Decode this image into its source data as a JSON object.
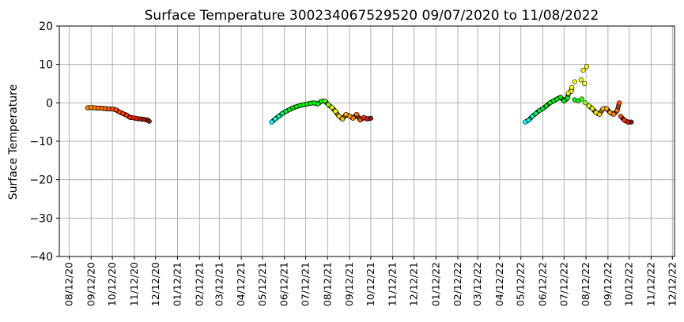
{
  "chart_data": {
    "type": "scatter",
    "title": "Surface Temperature 300234067529520  09/07/2020 to 11/08/2022",
    "xlabel": "",
    "ylabel": "Surface Temperature",
    "ylim": [
      -40,
      20
    ],
    "yticks": [
      20,
      10,
      0,
      -10,
      -20,
      -30,
      -40
    ],
    "yticklabels": [
      "20",
      "10",
      "0",
      "−10",
      "−20",
      "−30",
      "−40"
    ],
    "xlim": [
      "2020-07-29",
      "2022-12-15"
    ],
    "xticks": [
      "2020-08-12",
      "2020-09-12",
      "2020-10-12",
      "2020-11-12",
      "2020-12-12",
      "2021-01-12",
      "2021-02-12",
      "2021-03-12",
      "2021-04-12",
      "2021-05-12",
      "2021-06-12",
      "2021-07-12",
      "2021-08-12",
      "2021-09-12",
      "2021-10-12",
      "2021-11-12",
      "2021-12-12",
      "2022-01-12",
      "2022-02-12",
      "2022-03-12",
      "2022-04-12",
      "2022-05-12",
      "2022-06-12",
      "2022-07-12",
      "2022-08-12",
      "2022-09-12",
      "2022-10-12",
      "2022-11-12",
      "2022-12-12"
    ],
    "xticklabels": [
      "08/12/20",
      "09/12/20",
      "10/12/20",
      "11/12/20",
      "12/12/20",
      "01/12/21",
      "02/12/21",
      "03/12/21",
      "04/12/21",
      "05/12/21",
      "06/12/21",
      "07/12/21",
      "08/12/21",
      "09/12/21",
      "10/12/21",
      "11/12/21",
      "12/12/21",
      "01/12/22",
      "02/12/22",
      "03/12/22",
      "04/12/22",
      "05/12/22",
      "06/12/22",
      "07/12/22",
      "08/12/22",
      "09/12/22",
      "10/12/22",
      "11/12/22",
      "12/12/22"
    ],
    "grid": true,
    "colormap": "value-coloured markers (cyan → green → yellow → orange → red → dark red)",
    "series": [
      {
        "x": [
          "2020-09-07",
          "2020-09-12",
          "2020-09-17",
          "2020-09-22",
          "2020-09-27",
          "2020-10-02",
          "2020-10-07",
          "2020-10-12",
          "2020-10-17",
          "2020-10-22",
          "2020-10-27",
          "2020-11-01",
          "2020-11-06",
          "2020-11-11",
          "2020-11-16",
          "2020-11-21",
          "2020-11-26",
          "2020-12-01",
          "2020-12-03"
        ],
        "y": [
          -1.3,
          -1.2,
          -1.3,
          -1.4,
          -1.4,
          -1.5,
          -1.6,
          -1.6,
          -1.8,
          -2.4,
          -2.8,
          -3.2,
          -3.8,
          -3.9,
          -4.1,
          -4.2,
          -4.3,
          -4.5,
          -4.8
        ]
      },
      {
        "x": [
          "2021-05-25",
          "2021-05-30",
          "2021-06-04",
          "2021-06-09",
          "2021-06-14",
          "2021-06-19",
          "2021-06-24",
          "2021-06-29",
          "2021-07-04",
          "2021-07-09",
          "2021-07-14",
          "2021-07-19",
          "2021-07-24",
          "2021-07-29",
          "2021-08-03",
          "2021-08-08",
          "2021-08-13",
          "2021-08-18",
          "2021-08-23",
          "2021-08-28",
          "2021-09-02",
          "2021-09-07",
          "2021-09-12",
          "2021-09-17",
          "2021-09-22",
          "2021-09-27",
          "2021-10-02",
          "2021-10-07",
          "2021-10-12"
        ],
        "y": [
          -5.0,
          -4.2,
          -3.5,
          -2.8,
          -2.2,
          -1.8,
          -1.3,
          -1.0,
          -0.7,
          -0.5,
          -0.3,
          -0.1,
          0.0,
          -0.3,
          0.4,
          0.5,
          -0.5,
          -1.2,
          -2.2,
          -3.5,
          -4.2,
          -3.0,
          -3.5,
          -4.0,
          -3.0,
          -4.5,
          -3.8,
          -4.2,
          -4.0
        ]
      },
      {
        "x": [
          "2022-05-18",
          "2022-05-23",
          "2022-05-28",
          "2022-06-02",
          "2022-06-07",
          "2022-06-12",
          "2022-06-17",
          "2022-06-22",
          "2022-06-27",
          "2022-07-02",
          "2022-07-07",
          "2022-07-12",
          "2022-07-17",
          "2022-07-22",
          "2022-07-27",
          "2022-08-01",
          "2022-08-06",
          "2022-08-11",
          "2022-08-16",
          "2022-08-21",
          "2022-08-26",
          "2022-08-31",
          "2022-09-05",
          "2022-09-10",
          "2022-09-15",
          "2022-09-20",
          "2022-09-25",
          "2022-09-30",
          "2022-10-05",
          "2022-10-10",
          "2022-10-15",
          "2022-07-23",
          "2022-07-27",
          "2022-08-08",
          "2022-08-10",
          "2022-08-13",
          "2022-07-18",
          "2022-08-05",
          "2022-09-28"
        ],
        "y": [
          -5.0,
          -4.5,
          -3.5,
          -2.8,
          -2.0,
          -1.5,
          -0.8,
          0.0,
          0.5,
          1.0,
          1.5,
          0.5,
          1.2,
          3.0,
          0.8,
          0.5,
          1.0,
          0.0,
          -0.8,
          -1.5,
          -2.5,
          -3.0,
          -1.5,
          -1.5,
          -2.5,
          -3.0,
          -2.0,
          -3.5,
          -4.5,
          -5.0,
          -5.0,
          4.0,
          5.5,
          8.5,
          5.0,
          9.5,
          2.5,
          6.0,
          0.0
        ]
      }
    ]
  }
}
